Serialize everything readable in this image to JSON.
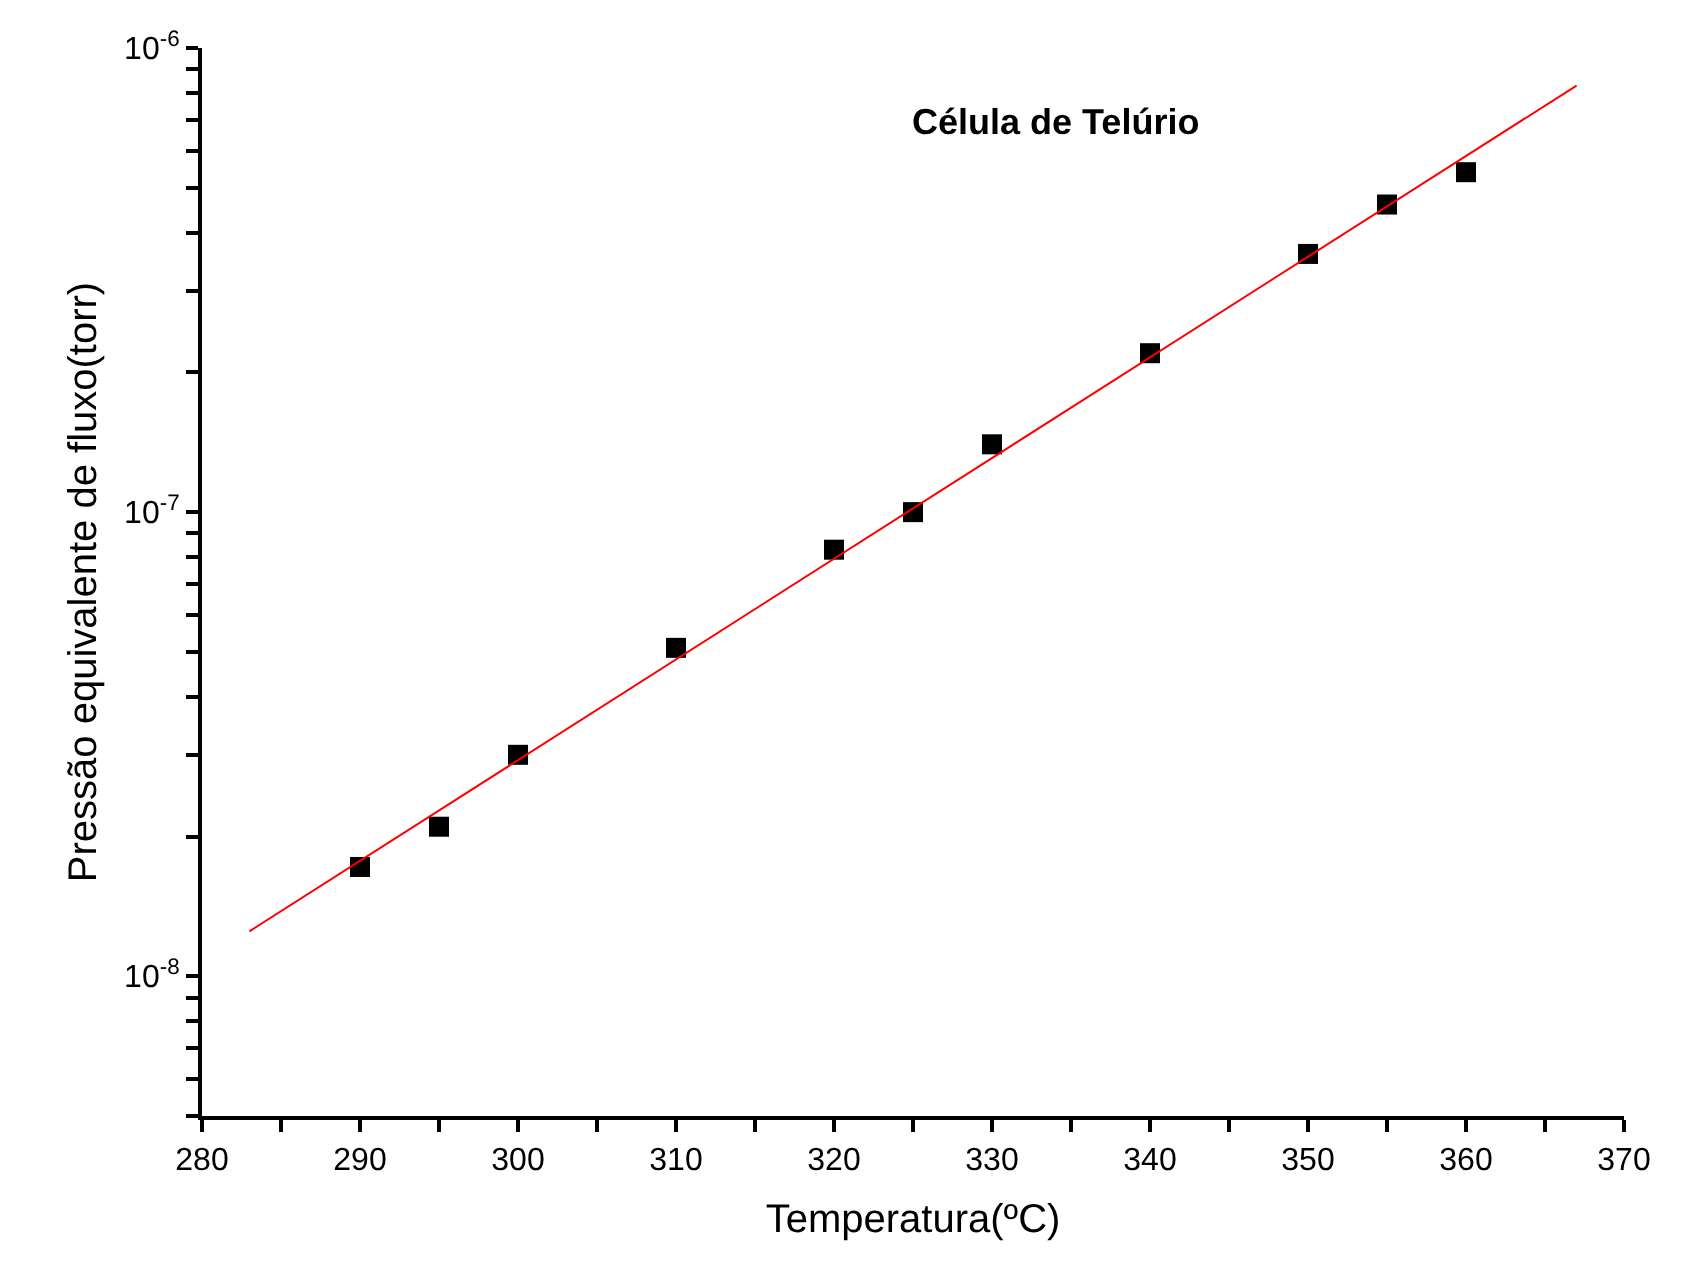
{
  "chart_data": {
    "type": "scatter",
    "xlabel": "Temperatura(ºC)",
    "ylabel": "Pressão equivalente de fluxo(torr)",
    "annotations": [
      "Célula de Telúrio"
    ],
    "log": "y",
    "marker": "square",
    "xlim": [
      280,
      370
    ],
    "ylim": [
      5e-09,
      1e-06
    ],
    "xticks": [
      280,
      {
        "value": 285,
        "label": null
      },
      290,
      {
        "value": 295,
        "label": null
      },
      300,
      {
        "value": 305,
        "label": null
      },
      310,
      {
        "value": 315,
        "label": null
      },
      320,
      {
        "value": 325,
        "label": null
      },
      330,
      {
        "value": 335,
        "label": null
      },
      340,
      {
        "value": 345,
        "label": null
      },
      350,
      {
        "value": 355,
        "label": null
      },
      360,
      {
        "value": 365,
        "label": null
      },
      370
    ],
    "yticks": [
      {
        "value": 5e-09,
        "label": null
      },
      {
        "value": 6e-09,
        "label": null
      },
      {
        "value": 7e-09,
        "label": null
      },
      {
        "value": 8e-09,
        "label": null
      },
      {
        "value": 9e-09,
        "label": null
      },
      {
        "value": 1e-08,
        "label": "10$^{-8}$"
      },
      {
        "value": 2e-08,
        "label": null
      },
      {
        "value": 3e-08,
        "label": null
      },
      {
        "value": 4e-08,
        "label": null
      },
      {
        "value": 5e-08,
        "label": null
      },
      {
        "value": 6e-08,
        "label": null
      },
      {
        "value": 7e-08,
        "label": null
      },
      {
        "value": 8e-08,
        "label": null
      },
      {
        "value": 9e-08,
        "label": null
      },
      {
        "value": 1e-07,
        "label": "10$^{-7}$"
      },
      {
        "value": 2e-07,
        "label": null
      },
      {
        "value": 3e-07,
        "label": null
      },
      {
        "value": 4e-07,
        "label": null
      },
      {
        "value": 5e-07,
        "label": null
      },
      {
        "value": 6e-07,
        "label": null
      },
      {
        "value": 7e-07,
        "label": null
      },
      {
        "value": 8e-07,
        "label": null
      },
      {
        "value": 9e-07,
        "label": null
      },
      {
        "value": 1e-06,
        "label": "10$^{-6}$"
      }
    ],
    "series": [
      {
        "color": "#000000",
        "x": [
          290,
          295,
          300,
          310,
          320,
          325,
          330,
          340,
          350,
          355,
          360
        ],
        "values": [
          1.72e-08,
          2.1e-08,
          3e-08,
          5.1e-08,
          8.3e-08,
          1e-07,
          1.4e-07,
          2.2e-07,
          3.6e-07,
          4.6e-07,
          5.4e-07
        ]
      },
      {
        "type": "line",
        "color": "#ff0000",
        "line_style": "solid",
        "marker": "none",
        "x": [
          283,
          367
        ],
        "values": [
          1.25e-08,
          8.3e-07
        ]
      }
    ]
  }
}
